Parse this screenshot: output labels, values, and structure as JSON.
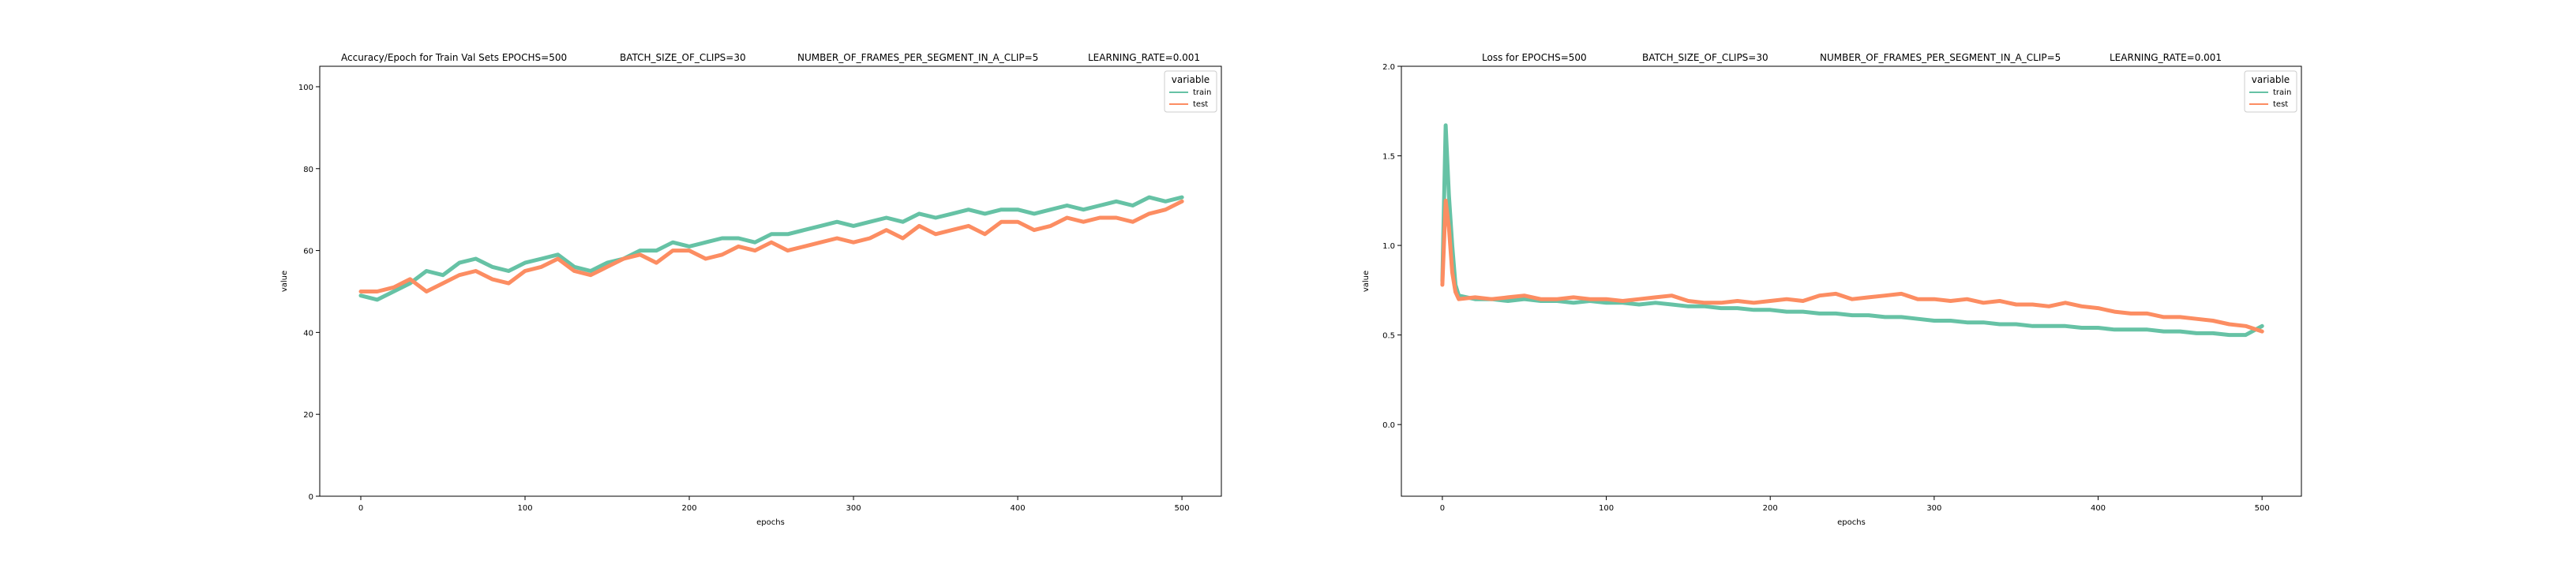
{
  "colors": {
    "train": "#66c2a5",
    "test": "#fc8d62"
  },
  "chart_data": [
    {
      "type": "line",
      "title_parts": [
        "Accuracy/Epoch for Train Val Sets EPOCHS=500",
        "BATCH_SIZE_OF_CLIPS=30",
        "NUMBER_OF_FRAMES_PER_SEGMENT_IN_A_CLIP=5",
        "LEARNING_RATE=0.001"
      ],
      "xlabel": "epochs",
      "ylabel": "value",
      "xlim": [
        -25,
        524
      ],
      "ylim": [
        0,
        105
      ],
      "x_ticks": [
        0,
        100,
        200,
        300,
        400,
        500
      ],
      "y_ticks": [
        0,
        20,
        40,
        60,
        80,
        100
      ],
      "legend": {
        "title": "variable",
        "position": "top-right",
        "entries": [
          "train",
          "test"
        ]
      },
      "series": [
        {
          "name": "train",
          "x": [
            0,
            10,
            20,
            30,
            40,
            50,
            60,
            70,
            80,
            90,
            100,
            110,
            120,
            130,
            140,
            150,
            160,
            170,
            180,
            190,
            200,
            210,
            220,
            230,
            240,
            250,
            260,
            270,
            280,
            290,
            300,
            310,
            320,
            330,
            340,
            350,
            360,
            370,
            380,
            390,
            400,
            410,
            420,
            430,
            440,
            450,
            460,
            470,
            480,
            490,
            500
          ],
          "values": [
            49,
            48,
            50,
            52,
            55,
            54,
            57,
            58,
            56,
            55,
            57,
            58,
            59,
            56,
            55,
            57,
            58,
            60,
            60,
            62,
            61,
            62,
            63,
            63,
            62,
            64,
            64,
            65,
            66,
            67,
            66,
            67,
            68,
            67,
            69,
            68,
            69,
            70,
            69,
            70,
            70,
            69,
            70,
            71,
            70,
            71,
            72,
            71,
            73,
            72,
            73
          ]
        },
        {
          "name": "test",
          "x": [
            0,
            10,
            20,
            30,
            40,
            50,
            60,
            70,
            80,
            90,
            100,
            110,
            120,
            130,
            140,
            150,
            160,
            170,
            180,
            190,
            200,
            210,
            220,
            230,
            240,
            250,
            260,
            270,
            280,
            290,
            300,
            310,
            320,
            330,
            340,
            350,
            360,
            370,
            380,
            390,
            400,
            410,
            420,
            430,
            440,
            450,
            460,
            470,
            480,
            490,
            500
          ],
          "values": [
            50,
            50,
            51,
            53,
            50,
            52,
            54,
            55,
            53,
            52,
            55,
            56,
            58,
            55,
            54,
            56,
            58,
            59,
            57,
            60,
            60,
            58,
            59,
            61,
            60,
            62,
            60,
            61,
            62,
            63,
            62,
            63,
            65,
            63,
            66,
            64,
            65,
            66,
            64,
            67,
            67,
            65,
            66,
            68,
            67,
            68,
            68,
            67,
            69,
            70,
            72
          ]
        }
      ]
    },
    {
      "type": "line",
      "title_parts": [
        "Loss for  EPOCHS=500",
        "BATCH_SIZE_OF_CLIPS=30",
        "NUMBER_OF_FRAMES_PER_SEGMENT_IN_A_CLIP=5",
        "LEARNING_RATE=0.001"
      ],
      "xlabel": "epochs",
      "ylabel": "value",
      "xlim": [
        -25,
        524
      ],
      "ylim": [
        -0.4,
        2.0
      ],
      "x_ticks": [
        0,
        100,
        200,
        300,
        400,
        500
      ],
      "y_ticks": [
        0.0,
        0.5,
        1.0,
        1.5,
        2.0
      ],
      "y_tick_labels": [
        "0.0",
        "0.5",
        "1.0",
        "1.5",
        "2.0"
      ],
      "legend": {
        "title": "variable",
        "position": "top-right",
        "entries": [
          "train",
          "test"
        ]
      },
      "series": [
        {
          "name": "train",
          "x": [
            0,
            2,
            4,
            6,
            8,
            10,
            20,
            30,
            40,
            50,
            60,
            70,
            80,
            90,
            100,
            110,
            120,
            130,
            140,
            150,
            160,
            170,
            180,
            190,
            200,
            210,
            220,
            230,
            240,
            250,
            260,
            270,
            280,
            290,
            300,
            310,
            320,
            330,
            340,
            350,
            360,
            370,
            380,
            390,
            400,
            410,
            420,
            430,
            440,
            450,
            460,
            470,
            480,
            490,
            500
          ],
          "values": [
            0.8,
            1.67,
            1.28,
            1.0,
            0.78,
            0.72,
            0.7,
            0.7,
            0.69,
            0.7,
            0.69,
            0.69,
            0.68,
            0.69,
            0.68,
            0.68,
            0.67,
            0.68,
            0.67,
            0.66,
            0.66,
            0.65,
            0.65,
            0.64,
            0.64,
            0.63,
            0.63,
            0.62,
            0.62,
            0.61,
            0.61,
            0.6,
            0.6,
            0.59,
            0.58,
            0.58,
            0.57,
            0.57,
            0.56,
            0.56,
            0.55,
            0.55,
            0.55,
            0.54,
            0.54,
            0.53,
            0.53,
            0.53,
            0.52,
            0.52,
            0.51,
            0.51,
            0.5,
            0.5,
            0.55
          ]
        },
        {
          "name": "test",
          "x": [
            0,
            2,
            4,
            6,
            8,
            10,
            20,
            30,
            40,
            50,
            60,
            70,
            80,
            90,
            100,
            110,
            120,
            130,
            140,
            150,
            160,
            170,
            180,
            190,
            200,
            210,
            220,
            230,
            240,
            250,
            260,
            270,
            280,
            290,
            300,
            310,
            320,
            330,
            340,
            350,
            360,
            370,
            380,
            390,
            400,
            410,
            420,
            430,
            440,
            450,
            460,
            470,
            480,
            490,
            500
          ],
          "values": [
            0.78,
            1.25,
            1.1,
            0.85,
            0.74,
            0.7,
            0.71,
            0.7,
            0.71,
            0.72,
            0.7,
            0.7,
            0.71,
            0.7,
            0.7,
            0.69,
            0.7,
            0.71,
            0.72,
            0.69,
            0.68,
            0.68,
            0.69,
            0.68,
            0.69,
            0.7,
            0.69,
            0.72,
            0.73,
            0.7,
            0.71,
            0.72,
            0.73,
            0.7,
            0.7,
            0.69,
            0.7,
            0.68,
            0.69,
            0.67,
            0.67,
            0.66,
            0.68,
            0.66,
            0.65,
            0.63,
            0.62,
            0.62,
            0.6,
            0.6,
            0.59,
            0.58,
            0.56,
            0.55,
            0.52
          ]
        }
      ]
    }
  ]
}
